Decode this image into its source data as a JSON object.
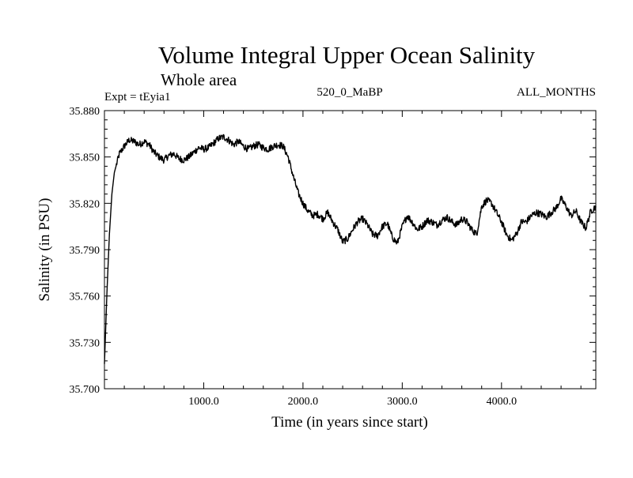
{
  "chart_data": {
    "type": "line",
    "title": "Volume Integral Upper Ocean Salinity",
    "subtitle": "Whole area",
    "experiment_label": "Expt = tEyia1",
    "period_label": "520_0_MaBP",
    "months_label": "ALL_MONTHS",
    "xlabel": "Time (in years since start)",
    "ylabel": "Salinity (in PSU)",
    "xlim": [
      0,
      4950
    ],
    "ylim": [
      35.7,
      35.88
    ],
    "x_ticks": [
      1000,
      2000,
      3000,
      4000
    ],
    "x_tick_labels": [
      "1000.0",
      "2000.0",
      "3000.0",
      "4000.0"
    ],
    "y_ticks": [
      35.7,
      35.73,
      35.76,
      35.79,
      35.82,
      35.85,
      35.88
    ],
    "y_tick_labels": [
      "35.700",
      "35.730",
      "35.760",
      "35.790",
      "35.820",
      "35.850",
      "35.880"
    ],
    "line_color": "#000000",
    "series": [
      {
        "name": "Salinity",
        "x": [
          0,
          25,
          50,
          75,
          100,
          150,
          200,
          250,
          300,
          350,
          400,
          450,
          500,
          550,
          600,
          650,
          700,
          750,
          800,
          850,
          900,
          950,
          1000,
          1050,
          1100,
          1150,
          1200,
          1250,
          1300,
          1350,
          1400,
          1450,
          1500,
          1550,
          1600,
          1650,
          1700,
          1750,
          1800,
          1850,
          1900,
          1950,
          2000,
          2050,
          2100,
          2150,
          2200,
          2250,
          2300,
          2350,
          2400,
          2450,
          2500,
          2550,
          2600,
          2650,
          2700,
          2750,
          2800,
          2850,
          2900,
          2950,
          3000,
          3050,
          3100,
          3150,
          3200,
          3250,
          3300,
          3350,
          3400,
          3450,
          3500,
          3550,
          3600,
          3650,
          3700,
          3750,
          3800,
          3850,
          3900,
          3950,
          4000,
          4050,
          4100,
          4150,
          4200,
          4250,
          4300,
          4350,
          4400,
          4450,
          4500,
          4550,
          4600,
          4650,
          4700,
          4750,
          4800,
          4850,
          4900,
          4950
        ],
        "values": [
          35.716,
          35.762,
          35.8,
          35.826,
          35.84,
          35.852,
          35.857,
          35.861,
          35.86,
          35.858,
          35.86,
          35.858,
          35.853,
          35.85,
          35.848,
          35.851,
          35.852,
          35.849,
          35.848,
          35.85,
          35.853,
          35.856,
          35.855,
          35.856,
          35.859,
          35.862,
          35.863,
          35.861,
          35.858,
          35.86,
          35.857,
          35.855,
          35.857,
          35.858,
          35.856,
          35.855,
          35.857,
          35.858,
          35.857,
          35.85,
          35.838,
          35.827,
          35.82,
          35.815,
          35.812,
          35.813,
          35.81,
          35.814,
          35.808,
          35.803,
          35.795,
          35.797,
          35.803,
          35.808,
          35.81,
          35.806,
          35.8,
          35.799,
          35.805,
          35.807,
          35.798,
          35.794,
          35.805,
          35.812,
          35.808,
          35.803,
          35.805,
          35.809,
          35.808,
          35.806,
          35.809,
          35.811,
          35.808,
          35.806,
          35.81,
          35.808,
          35.803,
          35.8,
          35.818,
          35.822,
          35.82,
          35.814,
          35.808,
          35.8,
          35.796,
          35.8,
          35.808,
          35.808,
          35.812,
          35.814,
          35.813,
          35.811,
          35.814,
          35.817,
          35.823,
          35.818,
          35.812,
          35.815,
          35.808,
          35.804,
          35.815,
          35.818
        ]
      }
    ]
  }
}
